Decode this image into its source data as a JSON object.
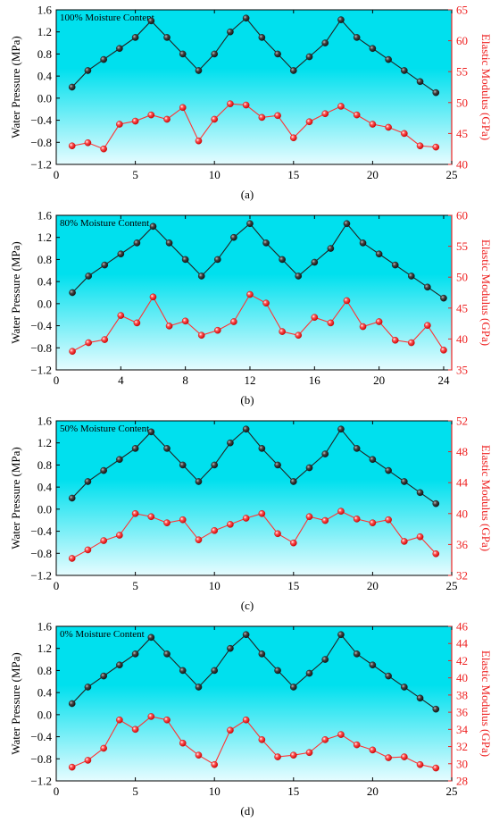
{
  "figure": {
    "colors": {
      "water_line": "#222222",
      "modulus_line": "#ff3333",
      "background_top": "#00e0ee",
      "background_bottom": "#e6fcff",
      "right_axis": "#ee2222"
    }
  },
  "chart_data": [
    {
      "type": "line",
      "caption": "(a)",
      "inset_label": "100% Moisture Content",
      "ylabel_left": "Water Pressure (MPa)",
      "ylabel_right": "Elastic Modulus (GPa)",
      "xlim": [
        0,
        25
      ],
      "xticks": [
        0,
        5,
        10,
        15,
        20,
        25
      ],
      "ylim_left": [
        -1.2,
        1.6
      ],
      "yticks_left": [
        -1.2,
        -0.8,
        -0.4,
        0.0,
        0.4,
        0.8,
        1.2,
        1.6
      ],
      "ylim_right": [
        40,
        65
      ],
      "yticks_right": [
        40,
        45,
        50,
        55,
        60,
        65
      ],
      "x": [
        1,
        2,
        3,
        4,
        5,
        6,
        7,
        8,
        9,
        10,
        11,
        12,
        13,
        14,
        15,
        16,
        17,
        18,
        19,
        20,
        21,
        22,
        23,
        24
      ],
      "series": [
        {
          "axis": "left",
          "values": [
            0.2,
            0.5,
            0.7,
            0.9,
            1.1,
            1.4,
            1.1,
            0.8,
            0.5,
            0.8,
            1.2,
            1.45,
            1.1,
            0.8,
            0.5,
            0.75,
            1.0,
            1.42,
            1.1,
            0.9,
            0.7,
            0.5,
            0.3,
            0.1
          ]
        },
        {
          "axis": "right",
          "values": [
            43,
            43.5,
            42.5,
            46.5,
            47,
            48,
            47.3,
            49.2,
            43.8,
            47.3,
            49.8,
            49.6,
            47.6,
            47.9,
            44.3,
            46.9,
            48.2,
            49.4,
            48,
            46.5,
            46,
            45,
            43,
            42.8
          ]
        }
      ]
    },
    {
      "type": "line",
      "caption": "(b)",
      "inset_label": "80% Moisture Content",
      "ylabel_left": "Water Pressure (MPa)",
      "ylabel_right": "Elastic Modulus (GPa)",
      "xlim": [
        0,
        24.5
      ],
      "xticks": [
        0,
        4,
        8,
        12,
        16,
        20,
        24
      ],
      "ylim_left": [
        -1.2,
        1.6
      ],
      "yticks_left": [
        -1.2,
        -0.8,
        -0.4,
        0.0,
        0.4,
        0.8,
        1.2,
        1.6
      ],
      "ylim_right": [
        35,
        60
      ],
      "yticks_right": [
        35,
        40,
        45,
        50,
        55,
        60
      ],
      "x": [
        1,
        2,
        3,
        4,
        5,
        6,
        7,
        8,
        9,
        10,
        11,
        12,
        13,
        14,
        15,
        16,
        17,
        18,
        19,
        20,
        21,
        22,
        23,
        24
      ],
      "series": [
        {
          "axis": "left",
          "values": [
            0.2,
            0.5,
            0.7,
            0.9,
            1.1,
            1.4,
            1.1,
            0.8,
            0.5,
            0.8,
            1.2,
            1.45,
            1.1,
            0.8,
            0.5,
            0.75,
            1.0,
            1.45,
            1.1,
            0.9,
            0.7,
            0.5,
            0.3,
            0.1
          ]
        },
        {
          "axis": "right",
          "values": [
            38,
            39.4,
            39.9,
            43.8,
            42.6,
            46.8,
            42.1,
            42.9,
            40.6,
            41.4,
            42.8,
            47.2,
            45.8,
            41.2,
            40.6,
            43.5,
            42.6,
            46.2,
            42,
            42.8,
            39.8,
            39.4,
            42.2,
            38.2
          ]
        }
      ]
    },
    {
      "type": "line",
      "caption": "(c)",
      "inset_label": "50% Moisture Content",
      "ylabel_left": "Water Pressure (MPa)",
      "ylabel_right": "Elastic Modulus (GPa)",
      "xlim": [
        0,
        25
      ],
      "xticks": [
        0,
        5,
        10,
        15,
        20,
        25
      ],
      "ylim_left": [
        -1.2,
        1.6
      ],
      "yticks_left": [
        -1.2,
        -0.8,
        -0.4,
        0.0,
        0.4,
        0.8,
        1.2,
        1.6
      ],
      "ylim_right": [
        32,
        52
      ],
      "yticks_right": [
        32,
        36,
        40,
        44,
        48,
        52
      ],
      "x": [
        1,
        2,
        3,
        4,
        5,
        6,
        7,
        8,
        9,
        10,
        11,
        12,
        13,
        14,
        15,
        16,
        17,
        18,
        19,
        20,
        21,
        22,
        23,
        24
      ],
      "series": [
        {
          "axis": "left",
          "values": [
            0.2,
            0.5,
            0.7,
            0.9,
            1.1,
            1.4,
            1.1,
            0.8,
            0.5,
            0.8,
            1.2,
            1.45,
            1.1,
            0.8,
            0.5,
            0.75,
            1.0,
            1.45,
            1.1,
            0.9,
            0.7,
            0.5,
            0.3,
            0.1
          ]
        },
        {
          "axis": "right",
          "values": [
            34.2,
            35.3,
            36.5,
            37.2,
            40,
            39.6,
            38.8,
            39.2,
            36.6,
            37.8,
            38.6,
            39.4,
            40,
            37.4,
            36.2,
            39.6,
            39.1,
            40.3,
            39.3,
            38.8,
            39.2,
            36.4,
            37,
            34.8
          ]
        }
      ]
    },
    {
      "type": "line",
      "caption": "(d)",
      "inset_label": "0% Moisture Content",
      "ylabel_left": "Water Pressure (MPa)",
      "ylabel_right": "Elastic Modulus (GPa)",
      "xlim": [
        0,
        25
      ],
      "xticks": [
        0,
        5,
        10,
        15,
        20,
        25
      ],
      "ylim_left": [
        -1.2,
        1.6
      ],
      "yticks_left": [
        -1.2,
        -0.8,
        -0.4,
        0.0,
        0.4,
        0.8,
        1.2,
        1.6
      ],
      "ylim_right": [
        28,
        46
      ],
      "yticks_right": [
        28,
        30,
        32,
        34,
        36,
        38,
        40,
        42,
        44,
        46
      ],
      "x": [
        1,
        2,
        3,
        4,
        5,
        6,
        7,
        8,
        9,
        10,
        11,
        12,
        13,
        14,
        15,
        16,
        17,
        18,
        19,
        20,
        21,
        22,
        23,
        24
      ],
      "series": [
        {
          "axis": "left",
          "values": [
            0.2,
            0.5,
            0.7,
            0.9,
            1.1,
            1.4,
            1.1,
            0.8,
            0.5,
            0.8,
            1.2,
            1.45,
            1.1,
            0.8,
            0.5,
            0.75,
            1.0,
            1.45,
            1.1,
            0.9,
            0.7,
            0.5,
            0.3,
            0.1
          ]
        },
        {
          "axis": "right",
          "values": [
            29.6,
            30.4,
            31.8,
            35.1,
            34,
            35.5,
            35.1,
            32.4,
            31,
            29.9,
            33.9,
            35.1,
            32.8,
            30.8,
            31,
            31.3,
            32.8,
            33.4,
            32.2,
            31.6,
            30.7,
            30.8,
            29.9,
            29.5
          ]
        }
      ]
    }
  ]
}
